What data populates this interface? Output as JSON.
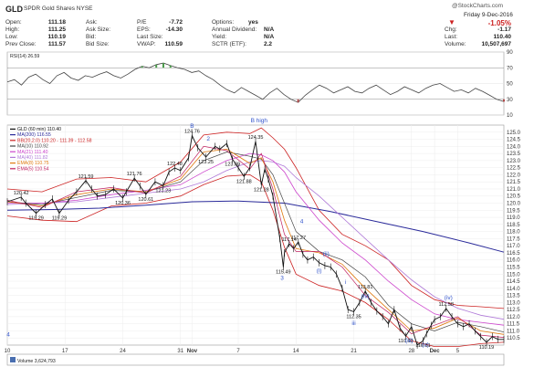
{
  "header": {
    "symbol": "GLD",
    "description": "SPDR Gold Shares  NYSE",
    "brand": "@StockCharts.com",
    "date": "Friday  9-Dec-2016",
    "change_pct": "-1.05%",
    "fields": [
      {
        "label": "Open:",
        "value": "111.18"
      },
      {
        "label": "High:",
        "value": "111.25"
      },
      {
        "label": "Low:",
        "value": "110.19"
      },
      {
        "label": "Prev Close:",
        "value": "111.57"
      },
      {
        "label": "Ask:",
        "value": ""
      },
      {
        "label": "Ask Size:",
        "value": ""
      },
      {
        "label": "Bid:",
        "value": ""
      },
      {
        "label": "Bid Size:",
        "value": ""
      },
      {
        "label": "P/E",
        "value": "-7.72"
      },
      {
        "label": "EPS:",
        "value": "-14.30"
      },
      {
        "label": "Last Size:",
        "value": ""
      },
      {
        "label": "VWAP:",
        "value": "110.59"
      },
      {
        "label": "Options:",
        "value": "yes"
      },
      {
        "label": "Annual Dividend:",
        "value": "N/A"
      },
      {
        "label": "Yield:",
        "value": "N/A"
      },
      {
        "label": "SCTR (ETF):",
        "value": "2.2"
      },
      {
        "label": "Chg:",
        "value": "-1.17"
      },
      {
        "label": "Last:",
        "value": "110.40"
      },
      {
        "label": "Volume:",
        "value": "10,507,697"
      }
    ]
  },
  "colors": {
    "price": "#111111",
    "ma200": "#2a2a9a",
    "bb": "#cc2222",
    "ma10": "#444444",
    "ma21": "#cc44cc",
    "ma40": "#b07ad8",
    "ema8": "#e07a10",
    "ema5": "#c02060",
    "waves": "#3355cc",
    "rsi": "#444444"
  },
  "chart_data": [
    {
      "type": "line",
      "title": "RSI(14) 26.59",
      "ylim": [
        10,
        90
      ],
      "y_ticks": [
        10,
        30,
        50,
        70,
        90
      ],
      "overbought": 70,
      "oversold": 30,
      "values": [
        52,
        55,
        48,
        58,
        62,
        55,
        50,
        60,
        64,
        57,
        54,
        60,
        58,
        62,
        65,
        60,
        57,
        62,
        68,
        72,
        70,
        74,
        76,
        73,
        70,
        68,
        64,
        66,
        60,
        55,
        48,
        42,
        38,
        45,
        40,
        35,
        30,
        38,
        44,
        36,
        30,
        26,
        35,
        42,
        48,
        44,
        38,
        42,
        46,
        40,
        38,
        44,
        48,
        42,
        36,
        40,
        46,
        42,
        38,
        44,
        48,
        50,
        45,
        40,
        42,
        38,
        44,
        40,
        35,
        30,
        27
      ]
    },
    {
      "type": "line",
      "title": "GLD (60 min) 110.40",
      "ylim": [
        110,
        125.5
      ],
      "y_ticks": [
        110.5,
        111.0,
        111.5,
        112.0,
        112.5,
        113.0,
        113.5,
        114.0,
        114.5,
        115.0,
        115.5,
        116.0,
        116.5,
        117.0,
        117.5,
        118.0,
        118.5,
        119.0,
        119.5,
        120.0,
        120.5,
        121.0,
        121.5,
        122.0,
        122.5,
        123.0,
        123.5,
        124.0,
        124.5,
        125.0
      ],
      "x_ticks": [
        {
          "label": "10",
          "t": 0
        },
        {
          "label": "17",
          "t": 5
        },
        {
          "label": "24",
          "t": 10
        },
        {
          "label": "31",
          "t": 15
        },
        {
          "label": "Nov",
          "t": 16
        },
        {
          "label": "7",
          "t": 20
        },
        {
          "label": "14",
          "t": 25
        },
        {
          "label": "21",
          "t": 30
        },
        {
          "label": "28",
          "t": 35
        },
        {
          "label": "Dec",
          "t": 37
        },
        {
          "label": "5",
          "t": 39
        }
      ],
      "x_range": [
        0,
        43
      ],
      "legend": [
        "GLD (60 min) 110.40",
        "MA(200) 116.55",
        "BB(20,2.0) 110.20 - 111.39 - 112.58",
        "MA(10) 110.92",
        "MA(21) 111.40",
        "MA(40) 111.82",
        "EMA(8) 110.75",
        "EMA(5) 110.54"
      ],
      "series": [
        {
          "key": "price",
          "x": [
            0,
            1.2,
            1.6,
            2.5,
            3.3,
            3.9,
            4.5,
            5.3,
            6,
            6.8,
            7.3,
            7.8,
            8.5,
            9.2,
            10,
            10.3,
            11,
            11.5,
            12,
            12.8,
            13.5,
            14,
            14.5,
            15,
            15.7,
            16,
            16.5,
            17.2,
            18,
            18.4,
            19,
            19.5,
            20,
            20.5,
            21,
            21.5,
            22,
            22.3,
            22.6,
            23,
            23.6,
            23.9,
            24,
            24.4,
            24.8,
            25.2,
            25.6,
            26,
            26.5,
            27,
            27.5,
            28,
            28.5,
            29,
            29.5,
            30,
            30.5,
            31,
            31.5,
            32,
            32.5,
            33,
            33.5,
            34,
            34.5,
            35,
            35.5,
            36,
            36.3,
            36.7,
            37,
            37.5,
            38,
            38.5,
            39,
            39.5,
            40,
            40.5,
            41,
            41.5,
            42,
            42.5,
            43
          ],
          "y": [
            120.1,
            120.42,
            120.0,
            119.29,
            119.9,
            120.3,
            119.29,
            120.2,
            120.8,
            121.59,
            121.0,
            120.5,
            120.6,
            121.0,
            120.36,
            120.8,
            121.76,
            121.2,
            120.61,
            121.5,
            121.23,
            122.2,
            122.48,
            122.3,
            123.2,
            124.76,
            123.9,
            123.25,
            124.0,
            123.8,
            124.2,
            123.09,
            122.5,
            121.88,
            122.5,
            124.35,
            121.28,
            122.4,
            121.7,
            120.5,
            117.5,
            115.49,
            116.5,
            117.14,
            116.8,
            117.27,
            116.4,
            116.0,
            116.2,
            115.8,
            115.6,
            115.5,
            115.0,
            114.0,
            112.5,
            112.35,
            113.0,
            113.8,
            113.0,
            112.4,
            112.0,
            111.5,
            112.5,
            111.2,
            110.63,
            111.3,
            110.0,
            110.31,
            110.8,
            111.4,
            111.8,
            112.0,
            112.58,
            112.0,
            111.5,
            111.3,
            111.5,
            111.0,
            110.6,
            110.19,
            110.6,
            110.4,
            110.4
          ]
        },
        {
          "key": "ma200",
          "x": [
            0,
            4,
            8,
            12,
            16,
            20,
            24,
            28,
            32,
            36,
            40,
            43
          ],
          "y": [
            119.5,
            119.55,
            119.65,
            119.85,
            120.1,
            120.15,
            120.0,
            119.4,
            118.7,
            118.0,
            117.2,
            116.55
          ]
        },
        {
          "key": "bb",
          "x": [
            0,
            3,
            6,
            9,
            12,
            15,
            17,
            19,
            21,
            22,
            23,
            24,
            25,
            27,
            29,
            31,
            33,
            35,
            37,
            39,
            41,
            43
          ],
          "y": [
            121.0,
            120.8,
            121.7,
            121.8,
            121.5,
            122.9,
            124.8,
            125.0,
            124.9,
            125.3,
            124.6,
            123.8,
            122.5,
            119.5,
            117.8,
            117.0,
            116.0,
            114.2,
            113.2,
            112.8,
            112.7,
            112.58
          ]
        },
        {
          "key": "bb_lower",
          "x": [
            0,
            3,
            6,
            9,
            12,
            15,
            17,
            19,
            21,
            22,
            23,
            24,
            25,
            27,
            29,
            31,
            33,
            35,
            37,
            39,
            41,
            43
          ],
          "y": [
            119.1,
            118.8,
            118.7,
            119.8,
            120.0,
            120.5,
            121.3,
            121.9,
            122.0,
            121.5,
            119.5,
            116.9,
            115.0,
            114.2,
            113.8,
            113.0,
            111.8,
            110.3,
            109.9,
            109.9,
            110.1,
            110.2
          ]
        },
        {
          "key": "ma10",
          "x": [
            0,
            3,
            6,
            9,
            12,
            15,
            17,
            19,
            21,
            22,
            23,
            24,
            25,
            27,
            29,
            31,
            33,
            35,
            37,
            39,
            41,
            43
          ],
          "y": [
            120.1,
            119.9,
            120.4,
            120.9,
            120.8,
            121.5,
            123.0,
            123.6,
            123.3,
            123.1,
            122.0,
            120.0,
            118.0,
            116.6,
            116.0,
            114.8,
            112.8,
            111.5,
            111.0,
            111.6,
            111.3,
            110.92
          ]
        },
        {
          "key": "ma21",
          "x": [
            0,
            3,
            6,
            9,
            12,
            15,
            17,
            19,
            21,
            22,
            23,
            24,
            25,
            27,
            29,
            31,
            33,
            35,
            37,
            39,
            41,
            43
          ],
          "y": [
            120.0,
            120.0,
            120.2,
            120.6,
            120.9,
            121.3,
            122.2,
            123.0,
            123.5,
            123.4,
            123.0,
            122.2,
            120.8,
            118.8,
            117.2,
            116.0,
            114.5,
            113.2,
            112.2,
            111.8,
            111.6,
            111.4
          ]
        },
        {
          "key": "ma40",
          "x": [
            0,
            3,
            6,
            9,
            12,
            15,
            17,
            19,
            21,
            22,
            23,
            24,
            25,
            27,
            29,
            31,
            33,
            35,
            37,
            39,
            41,
            43
          ],
          "y": [
            119.9,
            120.0,
            120.1,
            120.4,
            120.7,
            121.0,
            121.5,
            122.3,
            122.9,
            123.0,
            122.9,
            122.6,
            121.8,
            120.5,
            119.0,
            117.5,
            116.0,
            114.6,
            113.4,
            112.6,
            112.1,
            111.82
          ]
        },
        {
          "key": "ema8",
          "x": [
            0,
            3,
            6,
            9,
            12,
            15,
            17,
            19,
            21,
            22,
            23,
            24,
            25,
            27,
            29,
            31,
            33,
            35,
            37,
            39,
            41,
            43
          ],
          "y": [
            120.1,
            119.8,
            120.6,
            121.0,
            120.8,
            121.7,
            123.6,
            123.8,
            122.8,
            123.2,
            121.5,
            118.8,
            116.8,
            116.5,
            115.7,
            114.0,
            112.5,
            111.0,
            111.2,
            111.9,
            111.0,
            110.75
          ]
        },
        {
          "key": "ema5",
          "x": [
            0,
            3,
            6,
            9,
            12,
            15,
            17,
            19,
            21,
            22,
            23,
            24,
            25,
            27,
            29,
            31,
            33,
            35,
            37,
            39,
            41,
            43
          ],
          "y": [
            120.2,
            119.7,
            120.8,
            121.1,
            120.7,
            121.9,
            124.0,
            123.7,
            122.4,
            123.5,
            121.0,
            117.8,
            116.6,
            116.6,
            115.5,
            113.5,
            112.3,
            110.8,
            111.4,
            112.0,
            110.7,
            110.54
          ]
        }
      ],
      "price_labels": [
        {
          "text": "120.42",
          "x": 1.2,
          "y": 120.42,
          "pos": "above"
        },
        {
          "text": "119.29",
          "x": 2.5,
          "y": 119.29,
          "pos": "below"
        },
        {
          "text": "119.29",
          "x": 4.5,
          "y": 119.29,
          "pos": "below"
        },
        {
          "text": "121.59",
          "x": 6.8,
          "y": 121.59,
          "pos": "above"
        },
        {
          "text": "120.36",
          "x": 10,
          "y": 120.36,
          "pos": "below"
        },
        {
          "text": "121.76",
          "x": 11,
          "y": 121.76,
          "pos": "above"
        },
        {
          "text": "120.61",
          "x": 12,
          "y": 120.61,
          "pos": "below"
        },
        {
          "text": "122.48",
          "x": 14.5,
          "y": 122.48,
          "pos": "above"
        },
        {
          "text": "121.23",
          "x": 13.5,
          "y": 121.23,
          "pos": "below"
        },
        {
          "text": "124.76",
          "x": 16,
          "y": 124.76,
          "pos": "above"
        },
        {
          "text": "123.25",
          "x": 17.2,
          "y": 123.25,
          "pos": "below"
        },
        {
          "text": "124.35",
          "x": 21.5,
          "y": 124.35,
          "pos": "above"
        },
        {
          "text": "123.09",
          "x": 19.5,
          "y": 123.09,
          "pos": "below"
        },
        {
          "text": "121.88",
          "x": 20.5,
          "y": 121.88,
          "pos": "below"
        },
        {
          "text": "121.28",
          "x": 22,
          "y": 121.28,
          "pos": "below"
        },
        {
          "text": "117.14",
          "x": 24.4,
          "y": 117.14,
          "pos": "above"
        },
        {
          "text": "117.27",
          "x": 25.2,
          "y": 117.27,
          "pos": "above"
        },
        {
          "text": "115.49",
          "x": 23.9,
          "y": 115.49,
          "pos": "below"
        },
        {
          "text": "113.81",
          "x": 31,
          "y": 113.81,
          "pos": "above"
        },
        {
          "text": "112.35",
          "x": 30,
          "y": 112.35,
          "pos": "below"
        },
        {
          "text": "110.63",
          "x": 34.5,
          "y": 110.63,
          "pos": "below"
        },
        {
          "text": "110.31",
          "x": 36,
          "y": 110.31,
          "pos": "below"
        },
        {
          "text": "112.58",
          "x": 38,
          "y": 112.58,
          "pos": "above"
        },
        {
          "text": "110.19",
          "x": 41.5,
          "y": 110.19,
          "pos": "below"
        }
      ],
      "wave_labels": [
        {
          "text": "B",
          "x": 16,
          "y": 125.3
        },
        {
          "text": "2",
          "x": 17.4,
          "y": 124.4
        },
        {
          "text": "B high",
          "x": 21.8,
          "y": 125.7
        },
        {
          "text": "4",
          "x": 25.5,
          "y": 118.6
        },
        {
          "text": "3",
          "x": 23.8,
          "y": 114.6
        },
        {
          "text": "(ii)",
          "x": 27.6,
          "y": 116.3
        },
        {
          "text": "(i)",
          "x": 27.0,
          "y": 115.1
        },
        {
          "text": "i",
          "x": 29.3,
          "y": 114.3
        },
        {
          "text": "(iv)",
          "x": 31.0,
          "y": 113.3
        },
        {
          "text": "iii",
          "x": 30.0,
          "y": 111.4
        },
        {
          "text": "(iii)",
          "x": 34.8,
          "y": 110.2
        },
        {
          "text": "(v)",
          "x": 36.2,
          "y": 109.9
        },
        {
          "text": "(iv)",
          "x": 38.2,
          "y": 113.2
        },
        {
          "text": "4",
          "x": 0.0,
          "y": 110.6
        }
      ]
    },
    {
      "type": "bar",
      "title": "Volume 3,624,793",
      "values": []
    }
  ]
}
